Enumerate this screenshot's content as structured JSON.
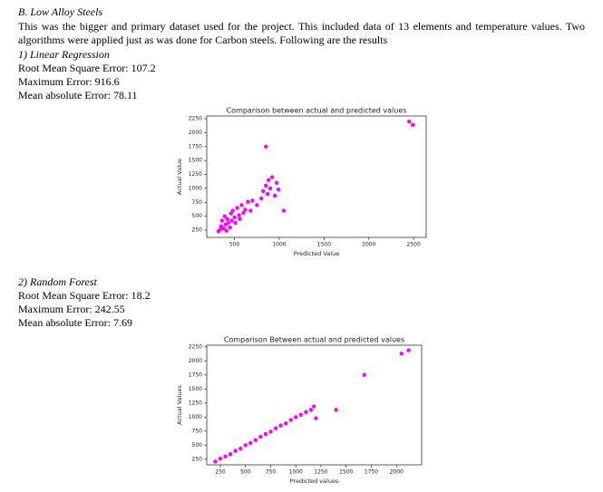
{
  "section": {
    "heading": "B. Low Alloy Steels",
    "paragraph": "This was the bigger and primary dataset used for the project. This included data of 13 elements and temperature values. Two algorithms were applied just as was done for Carbon steels. Following are the results"
  },
  "results": [
    {
      "title": "1) Linear Regression",
      "metrics": [
        "Root Mean Square Error: 107.2",
        "Maximum Error: 916.6",
        "Mean absolute Error: 78.11"
      ]
    },
    {
      "title": "2) Random Forest",
      "metrics": [
        "Root Mean Square Error: 18.2",
        "Maximum Error: 242.55",
        "Mean absolute Error: 7.69"
      ]
    }
  ],
  "chart_data": [
    {
      "type": "scatter",
      "title": "Comparison between actual and predicted values",
      "xlabel": "Predicted Value",
      "ylabel": "Actual Value",
      "color": "#ff00ff",
      "x": [
        320,
        340,
        350,
        360,
        380,
        390,
        400,
        410,
        420,
        430,
        450,
        460,
        470,
        480,
        500,
        510,
        530,
        550,
        560,
        580,
        600,
        620,
        650,
        680,
        700,
        750,
        800,
        820,
        850,
        870,
        880,
        900,
        920,
        950,
        970,
        990,
        850,
        1050,
        2450,
        2490
      ],
      "values": [
        230,
        260,
        320,
        420,
        280,
        500,
        350,
        240,
        450,
        380,
        300,
        550,
        420,
        600,
        480,
        380,
        650,
        520,
        450,
        700,
        560,
        620,
        760,
        600,
        780,
        700,
        820,
        950,
        1050,
        900,
        1150,
        1000,
        1200,
        870,
        1100,
        980,
        1750,
        600,
        2200,
        2140
      ],
      "xlim": [
        190,
        2640
      ],
      "ylim": [
        120,
        2300
      ],
      "xticks": [
        500,
        1000,
        1500,
        2000,
        2500
      ],
      "yticks": [
        250,
        500,
        750,
        1000,
        1250,
        1500,
        1750,
        2000,
        2250
      ]
    },
    {
      "type": "scatter",
      "title": "Comparison Between actual and predicted values",
      "xlabel": "Predicted values",
      "ylabel": "Actual Values",
      "color": "#ff00ff",
      "x": [
        200,
        250,
        300,
        350,
        400,
        450,
        500,
        550,
        600,
        650,
        700,
        750,
        800,
        850,
        900,
        950,
        1000,
        1050,
        1100,
        1150,
        1180,
        1200,
        1400,
        1680,
        2050,
        2120
      ],
      "values": [
        210,
        260,
        300,
        340,
        400,
        440,
        500,
        540,
        590,
        650,
        700,
        740,
        800,
        850,
        890,
        950,
        1000,
        1040,
        1090,
        1130,
        1190,
        980,
        1130,
        1750,
        2130,
        2190
      ],
      "xlim": [
        115,
        2250
      ],
      "ylim": [
        150,
        2280
      ],
      "xticks": [
        250,
        500,
        750,
        1000,
        1250,
        1500,
        1750,
        2000
      ],
      "yticks": [
        250,
        500,
        750,
        1000,
        1250,
        1500,
        1750,
        2000,
        2250
      ]
    }
  ]
}
